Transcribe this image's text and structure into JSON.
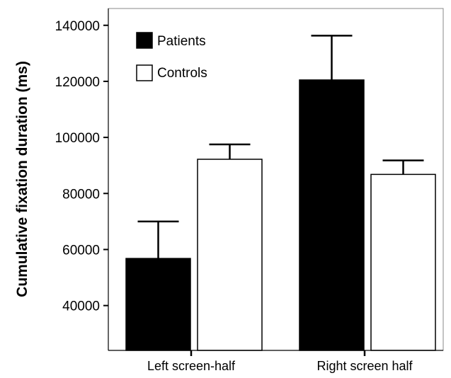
{
  "colors": {
    "patients": "#000000",
    "controls": "#ffffff",
    "axis": "#000000",
    "frame": "#888888"
  },
  "chart_data": {
    "type": "bar",
    "ylabel": "Cumulative fixation duration (ms)",
    "ylim": [
      24000,
      146000
    ],
    "yticks": [
      40000,
      60000,
      80000,
      100000,
      120000,
      140000
    ],
    "categories": [
      "Left screen-half",
      "Right screen half"
    ],
    "series": [
      {
        "name": "Patients",
        "values": [
          56800,
          120500
        ],
        "error_upper": [
          70000,
          136300
        ],
        "fill": "#000000"
      },
      {
        "name": "Controls",
        "values": [
          92200,
          86800
        ],
        "error_upper": [
          97500,
          91800
        ],
        "fill": "#ffffff"
      }
    ],
    "legend": {
      "placement": "top-left"
    },
    "grid": false
  }
}
